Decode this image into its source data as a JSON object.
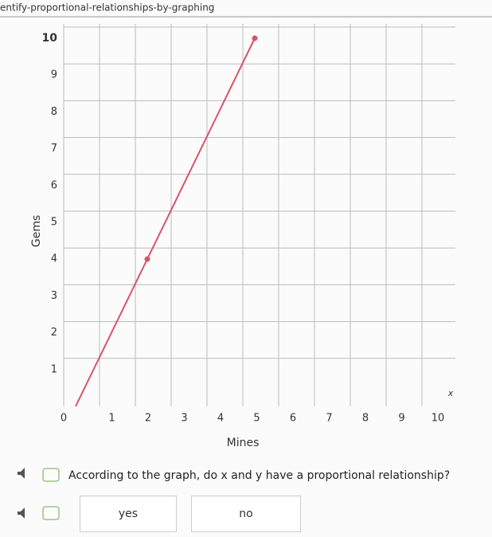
{
  "page_url": "entify-proportional-relationships-by-graphing",
  "chart_data": {
    "type": "line",
    "x_label": "Mines",
    "y_label": "Gems",
    "axis_hint": "x",
    "x": [
      0,
      2,
      5
    ],
    "series": [
      {
        "color": "#d9536a",
        "values": [
          0,
          4,
          10
        ]
      }
    ],
    "xlim": [
      0,
      10
    ],
    "ylim": [
      0,
      10
    ],
    "xticks": [
      0,
      1,
      2,
      3,
      4,
      5,
      6,
      7,
      8,
      9,
      10
    ],
    "yticks": [
      0,
      1,
      2,
      3,
      4,
      5,
      6,
      7,
      8,
      9,
      10
    ],
    "grid": true
  },
  "question": "According to the graph, do x and y have a proportional relationship?",
  "options": [
    "yes",
    "no"
  ]
}
